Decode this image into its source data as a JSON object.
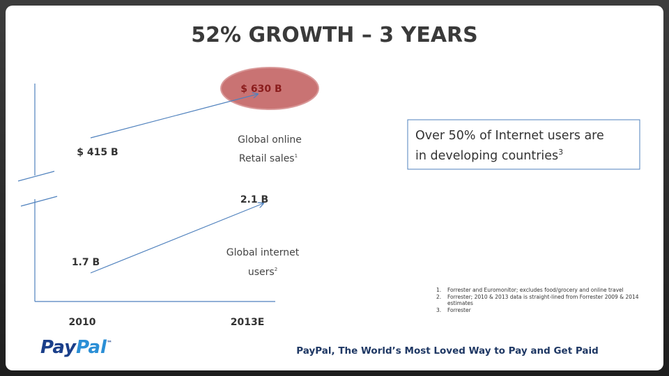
{
  "title": "52% GROWTH – 3 YEARS",
  "diagram": {
    "x_labels": [
      "2010",
      "2013E"
    ],
    "retail": {
      "start": "$ 415 B",
      "end": "$ 630 B",
      "label_lines": [
        "Global online",
        "Retail sales"
      ],
      "note_ref": "1"
    },
    "users": {
      "start": "1.7 B",
      "end": "2.1 B",
      "label_lines": [
        "Global internet",
        "users"
      ],
      "note_ref": "2"
    }
  },
  "callout": {
    "lines": [
      "Over 50% of Internet users are",
      "in developing countries"
    ],
    "note_ref": "3"
  },
  "footnotes": [
    {
      "marker": "1.",
      "text": "Forrester and Euromonitor; excludes food/grocery and online travel"
    },
    {
      "marker": "2.",
      "text": "Forrester; 2010 & 2013 data is straight-lined from Forrester 2009 & 2014 estimates"
    },
    {
      "marker": "3.",
      "text": "Forrester"
    }
  ],
  "logo": {
    "part1": "Pay",
    "part2": "Pal",
    "trademark": "™"
  },
  "tagline": "PayPal, The World’s Most Loved Way to Pay and Get Paid"
}
